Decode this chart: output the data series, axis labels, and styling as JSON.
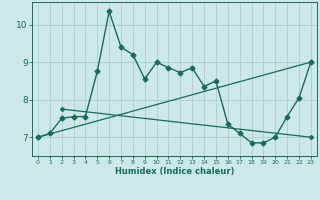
{
  "xlabel": "Humidex (Indice chaleur)",
  "background_color": "#cce8e8",
  "line_color": "#1a6b5a",
  "grid_color": "#aad0d0",
  "xlim": [
    -0.5,
    23.5
  ],
  "ylim": [
    6.5,
    10.6
  ],
  "yticks": [
    7,
    8,
    9,
    10
  ],
  "xticks": [
    0,
    1,
    2,
    3,
    4,
    5,
    6,
    7,
    8,
    9,
    10,
    11,
    12,
    13,
    14,
    15,
    16,
    17,
    18,
    19,
    20,
    21,
    22,
    23
  ],
  "main_x": [
    0,
    1,
    2,
    3,
    4,
    5,
    6,
    7,
    8,
    9,
    10,
    11,
    12,
    13,
    14,
    15,
    16,
    17,
    18,
    19,
    20,
    21,
    22,
    23
  ],
  "main_y": [
    7.0,
    7.1,
    7.5,
    7.55,
    7.55,
    8.75,
    10.35,
    9.4,
    9.2,
    8.55,
    9.0,
    8.85,
    8.72,
    8.85,
    8.35,
    8.5,
    7.35,
    7.1,
    6.85,
    6.85,
    7.0,
    7.55,
    8.05,
    9.0
  ],
  "line1_x": [
    0,
    23
  ],
  "line1_y": [
    7.0,
    9.0
  ],
  "line2_x": [
    2,
    23
  ],
  "line2_y": [
    7.75,
    7.0
  ],
  "figsize": [
    3.2,
    2.0
  ],
  "dpi": 100
}
